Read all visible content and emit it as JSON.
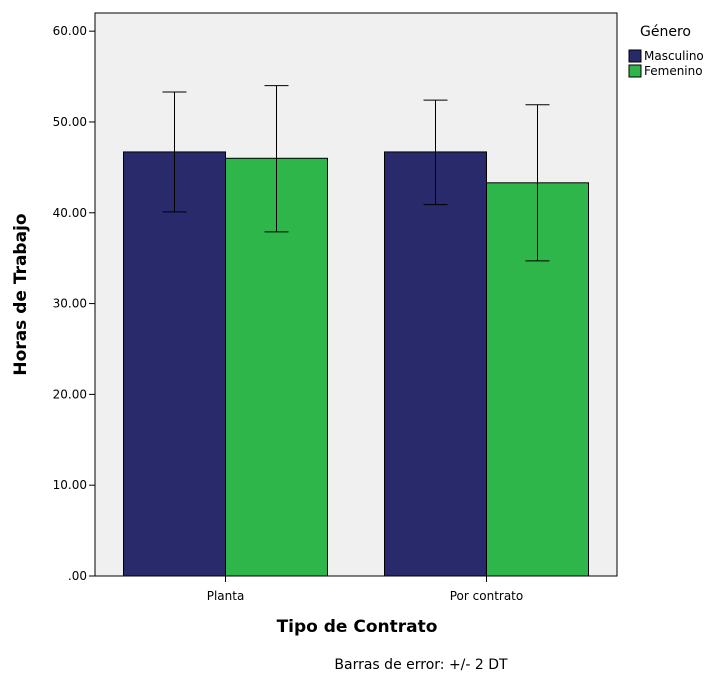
{
  "chart_data": {
    "type": "bar",
    "title": "",
    "xlabel": "Tipo de Contrato",
    "ylabel": "Horas de Trabajo",
    "categories": [
      "Planta",
      "Por contrato"
    ],
    "series": [
      {
        "name": "Masculino",
        "color": "#282a6c",
        "values": [
          46.7,
          46.7
        ],
        "error_low": [
          40.1,
          40.9
        ],
        "error_high": [
          53.3,
          52.4
        ]
      },
      {
        "name": "Femenino",
        "color": "#2fb64a",
        "values": [
          46.0,
          43.3
        ],
        "error_low": [
          37.9,
          34.7
        ],
        "error_high": [
          54.0,
          51.9
        ]
      }
    ],
    "ylim": [
      0,
      62
    ],
    "yticks": [
      0,
      10,
      20,
      30,
      40,
      50,
      60
    ],
    "ytick_labels": [
      ".00",
      "10.00",
      "20.00",
      "30.00",
      "40.00",
      "50.00",
      "60.00"
    ],
    "legend": {
      "title": "Género",
      "position": "top-right"
    },
    "footnote": "Barras de error: +/- 2 DT",
    "plot_background": "#f0f0f0",
    "grid": false
  }
}
